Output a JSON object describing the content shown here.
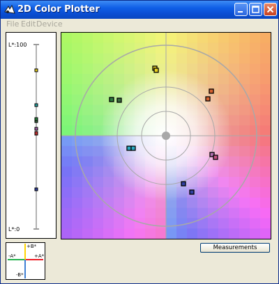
{
  "window": {
    "title": "2D Color Plotter"
  },
  "menu": {
    "items": [
      "File",
      "Edit",
      "Device"
    ]
  },
  "lstar_axis": {
    "top_label": "L*:100",
    "bottom_label": "L*:0"
  },
  "legend": {
    "pos_b": "+B*",
    "neg_b": "-B*",
    "pos_a": "+A*",
    "neg_a": "-A*"
  },
  "buttons": {
    "measurements": "Measurements"
  },
  "colors": {
    "title_bar": "#0a4fd4",
    "axis_green": "#22b14c",
    "axis_red": "#ed1c24",
    "axis_yellow": "#ffd400",
    "axis_blue": "#3f7fd4"
  }
}
